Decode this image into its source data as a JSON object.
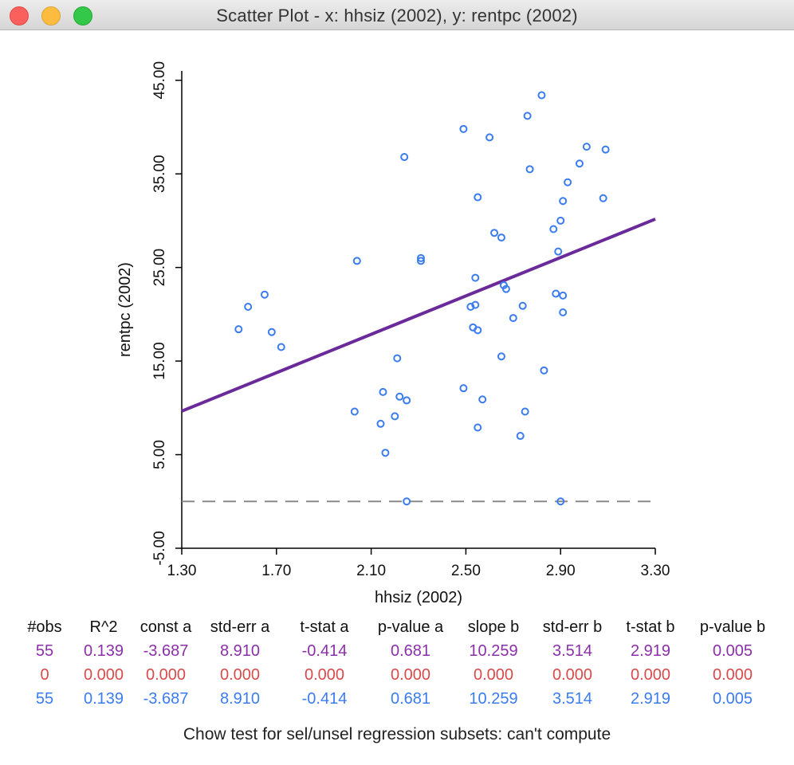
{
  "window": {
    "title": "Scatter Plot - x: hhsiz (2002), y: rentpc (2002)"
  },
  "chart_data": {
    "type": "scatter",
    "xlabel": "hhsiz (2002)",
    "ylabel": "rentpc (2002)",
    "xlim": [
      1.3,
      3.3
    ],
    "ylim": [
      -5,
      46
    ],
    "xticks": [
      "1.30",
      "1.70",
      "2.10",
      "2.50",
      "2.90",
      "3.30"
    ],
    "yticks": [
      "-5.00",
      "5.00",
      "15.00",
      "25.00",
      "35.00",
      "45.00"
    ],
    "colors": {
      "points": "#3b7cf0",
      "regression": "#6a2a9a",
      "zero_line": "#8a8a8a"
    },
    "regression_line": {
      "intercept": -3.687,
      "slope": 10.259
    },
    "zero_line": 0,
    "points": [
      [
        1.54,
        18.4
      ],
      [
        1.58,
        20.8
      ],
      [
        1.65,
        22.1
      ],
      [
        1.68,
        18.1
      ],
      [
        1.72,
        16.5
      ],
      [
        2.03,
        9.6
      ],
      [
        2.04,
        25.7
      ],
      [
        2.14,
        8.3
      ],
      [
        2.15,
        11.7
      ],
      [
        2.16,
        5.2
      ],
      [
        2.2,
        9.1
      ],
      [
        2.21,
        15.3
      ],
      [
        2.22,
        11.2
      ],
      [
        2.24,
        36.8
      ],
      [
        2.25,
        10.8
      ],
      [
        2.25,
        0.0
      ],
      [
        2.31,
        25.7
      ],
      [
        2.31,
        26.0
      ],
      [
        2.49,
        12.1
      ],
      [
        2.49,
        39.8
      ],
      [
        2.52,
        20.8
      ],
      [
        2.53,
        18.6
      ],
      [
        2.54,
        23.9
      ],
      [
        2.54,
        21.0
      ],
      [
        2.55,
        18.3
      ],
      [
        2.55,
        32.5
      ],
      [
        2.55,
        7.9
      ],
      [
        2.57,
        10.9
      ],
      [
        2.6,
        38.9
      ],
      [
        2.62,
        28.7
      ],
      [
        2.65,
        28.2
      ],
      [
        2.65,
        15.5
      ],
      [
        2.66,
        23.1
      ],
      [
        2.67,
        22.7
      ],
      [
        2.7,
        19.6
      ],
      [
        2.73,
        7.0
      ],
      [
        2.74,
        20.9
      ],
      [
        2.75,
        9.6
      ],
      [
        2.76,
        41.2
      ],
      [
        2.77,
        35.5
      ],
      [
        2.82,
        43.4
      ],
      [
        2.83,
        14.0
      ],
      [
        2.87,
        29.1
      ],
      [
        2.88,
        22.2
      ],
      [
        2.89,
        26.7
      ],
      [
        2.9,
        0.0
      ],
      [
        2.9,
        30.0
      ],
      [
        2.91,
        22.0
      ],
      [
        2.91,
        20.2
      ],
      [
        2.91,
        32.1
      ],
      [
        2.93,
        34.1
      ],
      [
        2.98,
        36.1
      ],
      [
        3.01,
        37.9
      ],
      [
        3.08,
        32.4
      ],
      [
        3.09,
        37.6
      ]
    ]
  },
  "stats": {
    "headers": [
      "#obs",
      "R^2",
      "const a",
      "std-err a",
      "t-stat a",
      "p-value a",
      "slope b",
      "std-err b",
      "t-stat b",
      "p-value b"
    ],
    "rows": [
      {
        "color": "#8b2fa8",
        "values": [
          "55",
          "0.139",
          "-3.687",
          "8.910",
          "-0.414",
          "0.681",
          "10.259",
          "3.514",
          "2.919",
          "0.005"
        ]
      },
      {
        "color": "#d94a4a",
        "values": [
          "0",
          "0.000",
          "0.000",
          "0.000",
          "0.000",
          "0.000",
          "0.000",
          "0.000",
          "0.000",
          "0.000"
        ]
      },
      {
        "color": "#3b7cf0",
        "values": [
          "55",
          "0.139",
          "-3.687",
          "8.910",
          "-0.414",
          "0.681",
          "10.259",
          "3.514",
          "2.919",
          "0.005"
        ]
      }
    ]
  },
  "chow": "Chow test for sel/unsel regression subsets: can't compute"
}
